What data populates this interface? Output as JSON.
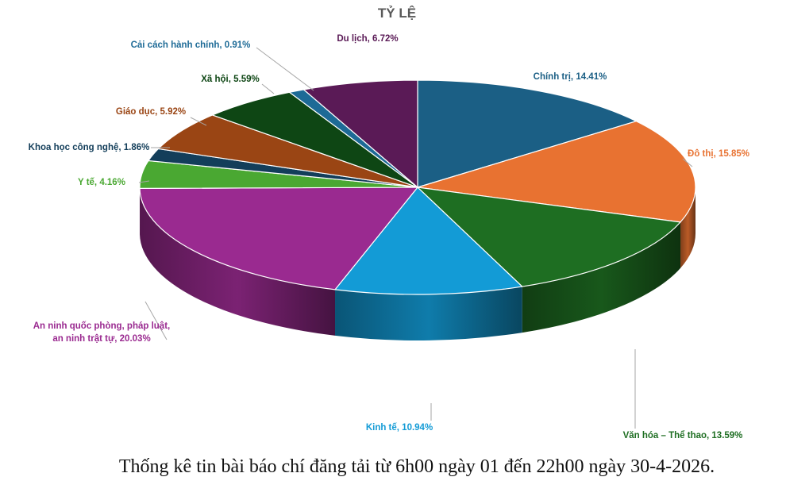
{
  "chart_data": {
    "type": "pie",
    "title": "TỶ LỆ",
    "slices": [
      {
        "name": "Chính trị",
        "value": 14.41,
        "label": "Chính trị, 14.41%",
        "color": "#1b5f85",
        "labelColor": "#1b5f85"
      },
      {
        "name": "Đô thị",
        "value": 15.85,
        "label": "Đô thị, 15.85%",
        "color": "#e87231",
        "labelColor": "#e87231"
      },
      {
        "name": "Văn hóa – Thể thao",
        "value": 13.59,
        "label": "Văn hóa – Thể thao, 13.59%",
        "color": "#1e6e22",
        "labelColor": "#1e6e22"
      },
      {
        "name": "Kinh tế",
        "value": 10.94,
        "label": "Kinh tế, 10.94%",
        "color": "#139bd6",
        "labelColor": "#139bd6"
      },
      {
        "name": "An ninh quốc phòng, pháp luật, an ninh trật tự",
        "value": 20.03,
        "label": "An ninh quốc phòng, pháp luật,\nan ninh trật tự, 20.03%",
        "color": "#9a2a90",
        "labelColor": "#9a2a90"
      },
      {
        "name": "Y tế",
        "value": 4.16,
        "label": "Y tế, 4.16%",
        "color": "#4aa832",
        "labelColor": "#4aa832"
      },
      {
        "name": "Khoa học công nghệ",
        "value": 1.86,
        "label": "Khoa học công nghệ, 1.86%",
        "color": "#133e5a",
        "labelColor": "#133e5a"
      },
      {
        "name": "Giáo dục",
        "value": 5.92,
        "label": "Giáo dục, 5.92%",
        "color": "#9a4514",
        "labelColor": "#9a4514"
      },
      {
        "name": "Xã hội",
        "value": 5.59,
        "label": "Xã hội, 5.59%",
        "color": "#0e4614",
        "labelColor": "#0e4614"
      },
      {
        "name": "Cải cách hành chính",
        "value": 0.91,
        "label": "Cải cách hành chính, 0.91%",
        "color": "#1d6a96",
        "labelColor": "#1d6a96"
      },
      {
        "name": "Du lịch",
        "value": 6.72,
        "label": "Du lịch, 6.72%",
        "color": "#5a1a56",
        "labelColor": "#5a1a56"
      }
    ],
    "data_labels": true,
    "style": "3d-pie"
  },
  "caption": "Thống kê tin bài báo chí đăng tải từ 6h00 ngày 01 đến 22h00 ngày 30-4-2026."
}
